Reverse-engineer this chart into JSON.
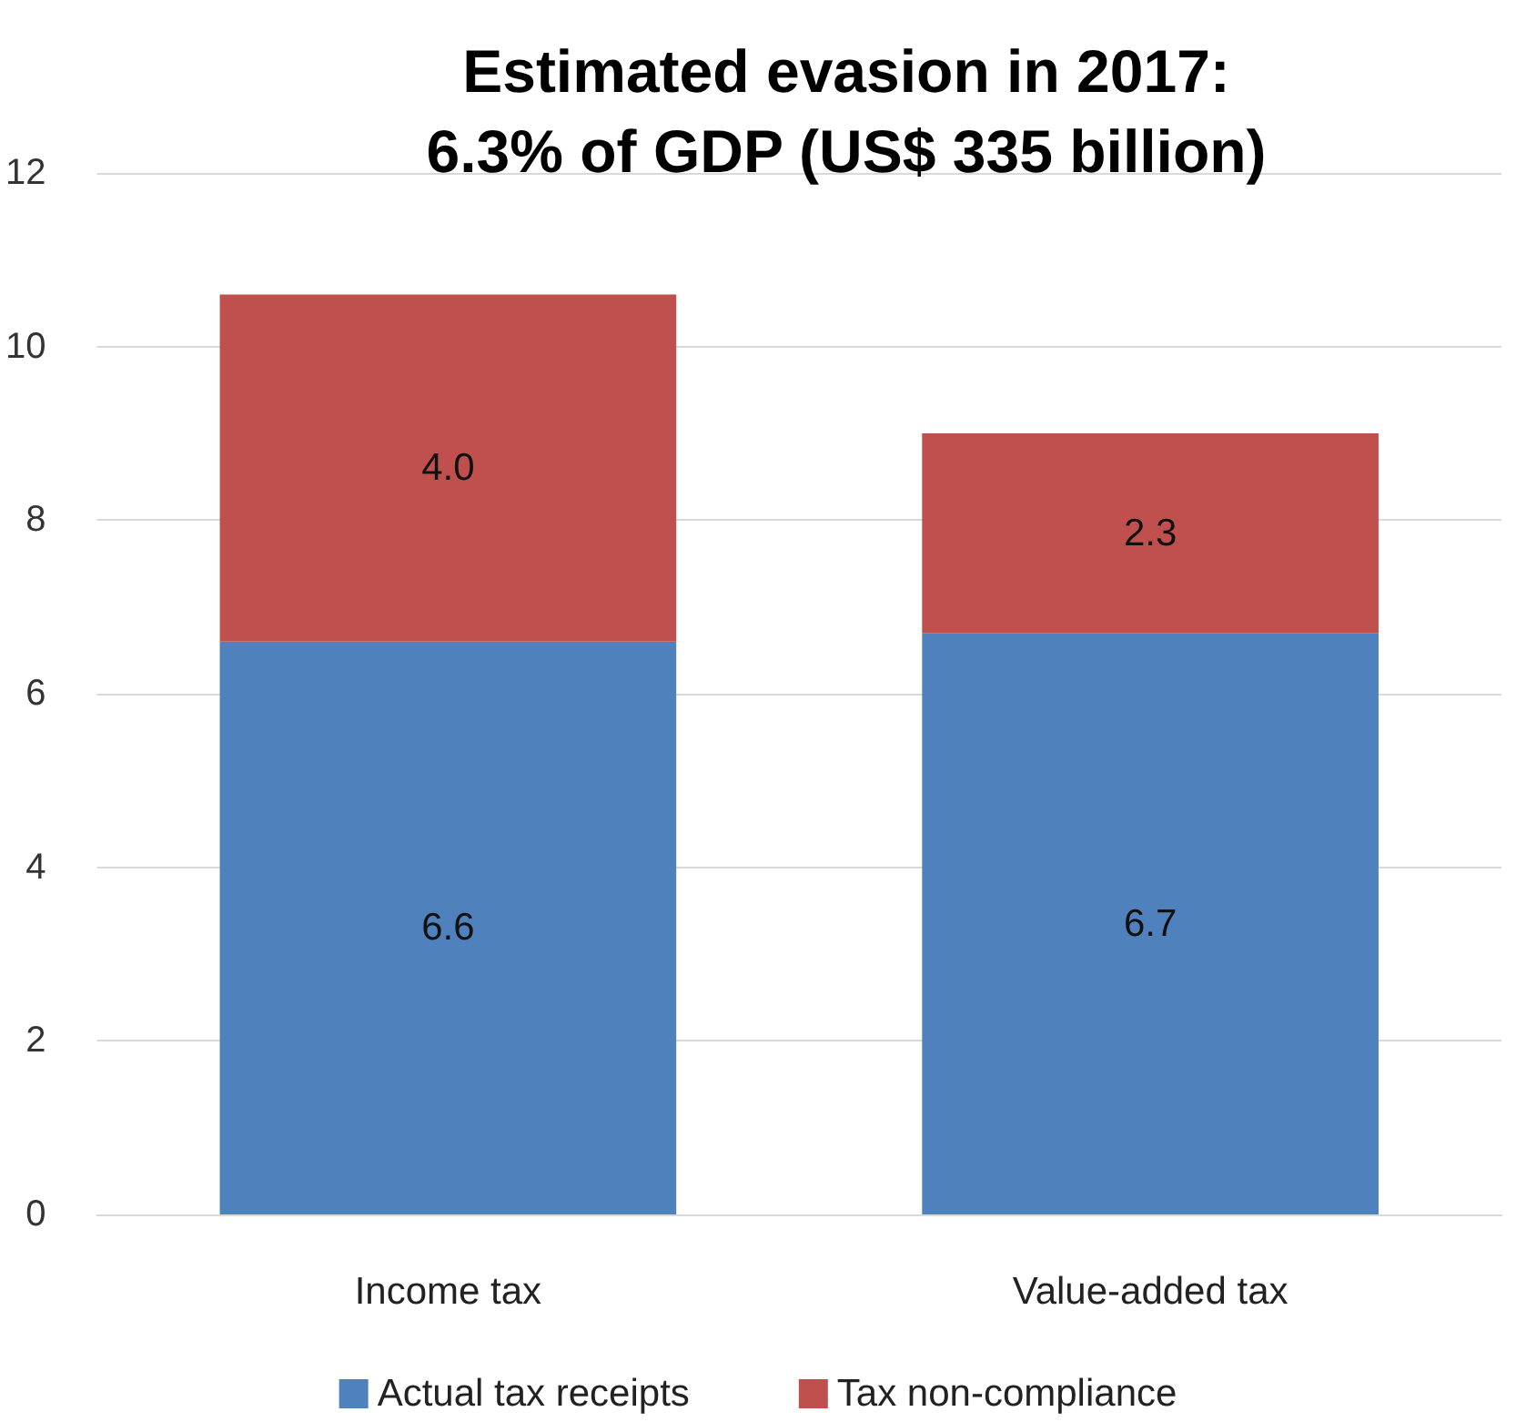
{
  "chart_data": {
    "type": "bar",
    "title": "Estimated evasion in 2017:\n6.3% of GDP (US$ 335 billion)",
    "categories": [
      "Income tax",
      "Value-added tax"
    ],
    "stacked": true,
    "series": [
      {
        "name": "Actual tax receipts",
        "color": "#4f81bd",
        "values": [
          6.6,
          6.7
        ],
        "value_labels": [
          "6.6",
          "6.7"
        ]
      },
      {
        "name": "Tax non-compliance",
        "color": "#c0504d",
        "values": [
          4.0,
          2.3
        ],
        "value_labels": [
          "4.0",
          "2.3"
        ]
      }
    ],
    "ylim": [
      0,
      12
    ],
    "yticks": [
      0,
      2,
      4,
      6,
      8,
      10,
      12
    ],
    "grid": "y",
    "legend": "bottom"
  }
}
